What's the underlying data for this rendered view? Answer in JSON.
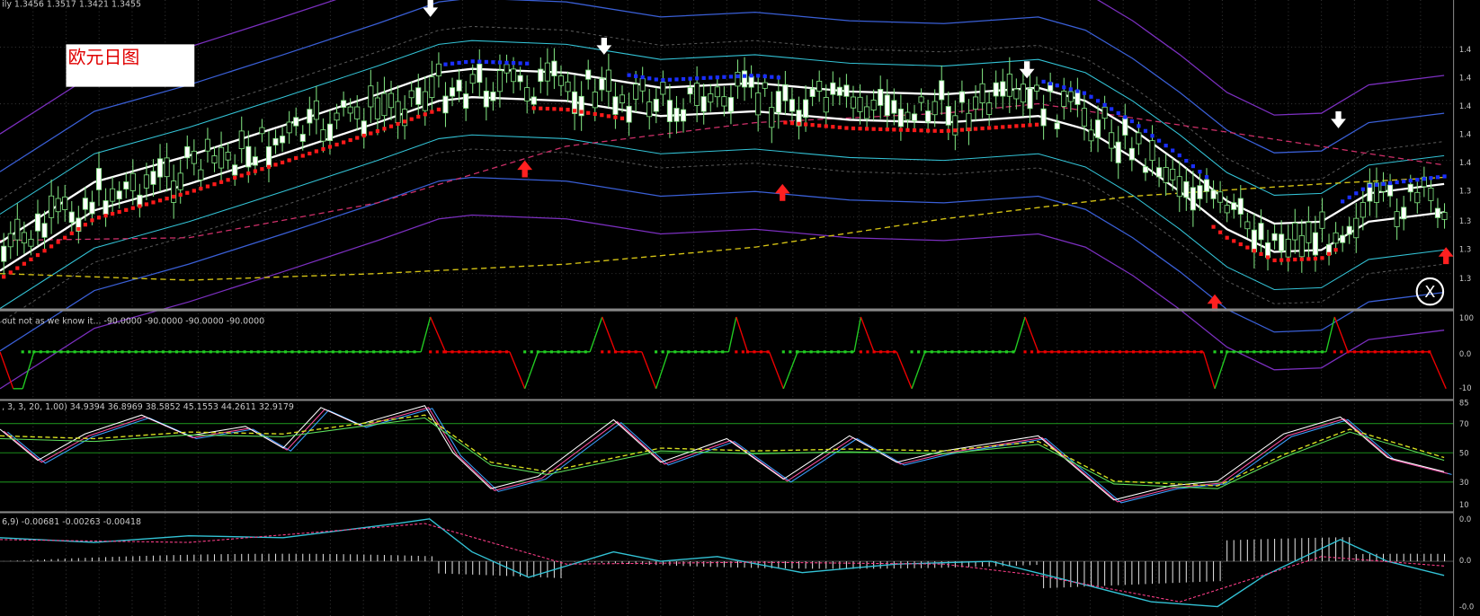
{
  "header": {
    "ohlc": "ily  1.3456 1.3517 1.3421 1.3455"
  },
  "label": "欧元日图",
  "panels": {
    "signal": {
      "info": "out not as we know it...  -90.0000 -90.0000 -90.0000 -90.0000",
      "axis": [
        "100",
        "0.0",
        "-10"
      ]
    },
    "stochastic": {
      "info": ", 3, 3, 20, 1.00) 34.9394 36.8969 38.5852 45.1553 44.2611 32.9179",
      "axis": [
        "85",
        "70",
        "50",
        "30",
        "10"
      ]
    },
    "macd": {
      "info": "6,9) -0.00681 -0.00263 -0.00418",
      "axis": [
        "0.0",
        "0.0",
        "-0.0"
      ]
    }
  },
  "price_axis": [
    "1.4",
    "1.4",
    "1.4",
    "1.4",
    "1.4",
    "1.3",
    "1.3",
    "1.3",
    "1.3"
  ]
}
